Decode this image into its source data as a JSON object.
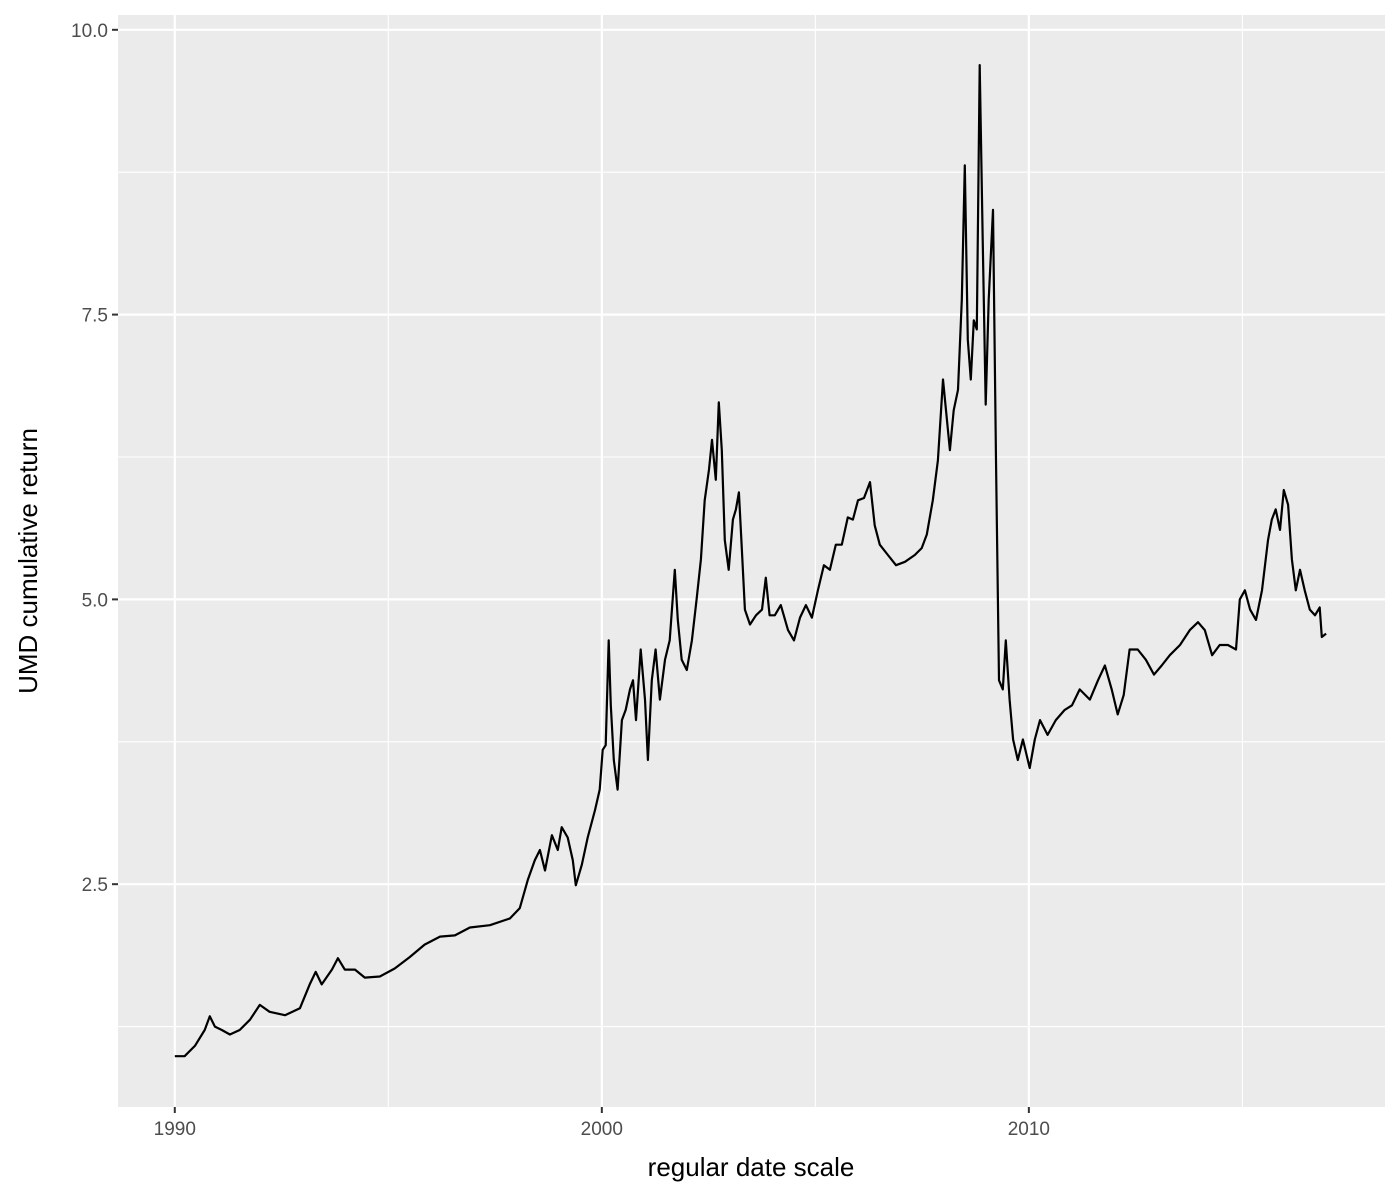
{
  "chart_data": {
    "type": "line",
    "title": "",
    "xlabel": "regular date scale",
    "ylabel": "UMD cumulative return",
    "xlim": [
      1988.67,
      2018.34
    ],
    "ylim": [
      0.544,
      10.13
    ],
    "x_ticks": [
      1990,
      2000,
      2010
    ],
    "x_tick_labels": [
      "1990",
      "2000",
      "2010"
    ],
    "x_minor_ticks": [
      1995,
      2005,
      2015
    ],
    "y_ticks": [
      2.5,
      5.0,
      7.5,
      10.0
    ],
    "y_tick_labels": [
      "2.5",
      "5.0",
      "7.5",
      "10.0"
    ],
    "y_minor_ticks": [
      1.25,
      3.75,
      6.25,
      8.75
    ],
    "grid": true,
    "panel_background": "#EBEBEB",
    "grid_color": "#FFFFFF",
    "line_color": "#000000",
    "series": [
      {
        "x": [
          1990.0,
          1990.23,
          1990.47,
          1990.7,
          1990.82,
          1990.94,
          1991.1,
          1991.29,
          1991.52,
          1991.76,
          1991.99,
          1992.22,
          1992.58,
          1992.93,
          1993.16,
          1993.3,
          1993.44,
          1993.68,
          1993.82,
          1993.98,
          1994.22,
          1994.45,
          1994.8,
          1995.15,
          1995.5,
          1995.85,
          1996.21,
          1996.56,
          1996.91,
          1997.38,
          1997.85,
          1998.08,
          1998.27,
          1998.43,
          1998.55,
          1998.67,
          1998.83,
          1998.97,
          1999.06,
          1999.2,
          1999.32,
          1999.39,
          1999.53,
          1999.67,
          1999.84,
          1999.95,
          2000.02,
          2000.09,
          2000.16,
          2000.21,
          2000.28,
          2000.37,
          2000.47,
          2000.56,
          2000.66,
          2000.73,
          2000.8,
          2000.91,
          2001.01,
          2001.08,
          2001.17,
          2001.26,
          2001.36,
          2001.48,
          2001.59,
          2001.71,
          2001.78,
          2001.87,
          2001.99,
          2002.11,
          2002.22,
          2002.32,
          2002.41,
          2002.51,
          2002.58,
          2002.67,
          2002.74,
          2002.81,
          2002.88,
          2002.97,
          2003.07,
          2003.14,
          2003.21,
          2003.28,
          2003.35,
          2003.47,
          2003.61,
          2003.75,
          2003.84,
          2003.93,
          2004.05,
          2004.19,
          2004.36,
          2004.5,
          2004.64,
          2004.78,
          2004.92,
          2005.06,
          2005.2,
          2005.34,
          2005.48,
          2005.62,
          2005.76,
          2005.88,
          2006.0,
          2006.14,
          2006.28,
          2006.39,
          2006.51,
          2006.7,
          2006.89,
          2007.1,
          2007.33,
          2007.49,
          2007.61,
          2007.75,
          2007.87,
          2007.99,
          2008.06,
          2008.15,
          2008.24,
          2008.34,
          2008.43,
          2008.5,
          2008.57,
          2008.64,
          2008.71,
          2008.78,
          2008.85,
          2008.92,
          2008.99,
          2009.06,
          2009.16,
          2009.23,
          2009.3,
          2009.39,
          2009.46,
          2009.55,
          2009.63,
          2009.74,
          2009.86,
          2010.02,
          2010.14,
          2010.26,
          2010.44,
          2010.63,
          2010.84,
          2011.01,
          2011.19,
          2011.43,
          2011.62,
          2011.78,
          2011.94,
          2012.08,
          2012.22,
          2012.36,
          2012.55,
          2012.74,
          2012.93,
          2013.11,
          2013.3,
          2013.54,
          2013.77,
          2013.96,
          2014.12,
          2014.29,
          2014.47,
          2014.66,
          2014.85,
          2014.94,
          2015.06,
          2015.18,
          2015.32,
          2015.46,
          2015.6,
          2015.69,
          2015.78,
          2015.88,
          2015.97,
          2016.07,
          2016.16,
          2016.25,
          2016.35,
          2016.46,
          2016.58,
          2016.7,
          2016.81,
          2016.86,
          2016.96
        ],
        "y": [
          0.99,
          0.99,
          1.08,
          1.22,
          1.34,
          1.25,
          1.22,
          1.18,
          1.22,
          1.31,
          1.44,
          1.38,
          1.35,
          1.41,
          1.62,
          1.73,
          1.62,
          1.75,
          1.85,
          1.75,
          1.75,
          1.68,
          1.69,
          1.76,
          1.86,
          1.97,
          2.04,
          2.05,
          2.12,
          2.14,
          2.2,
          2.29,
          2.54,
          2.71,
          2.8,
          2.62,
          2.93,
          2.8,
          3.0,
          2.91,
          2.71,
          2.49,
          2.67,
          2.91,
          3.15,
          3.33,
          3.68,
          3.72,
          4.64,
          4.07,
          3.59,
          3.33,
          3.94,
          4.03,
          4.21,
          4.29,
          3.94,
          4.56,
          4.12,
          3.59,
          4.29,
          4.56,
          4.12,
          4.47,
          4.64,
          5.26,
          4.82,
          4.47,
          4.38,
          4.64,
          5.0,
          5.35,
          5.87,
          6.14,
          6.4,
          6.05,
          6.73,
          6.31,
          5.52,
          5.26,
          5.7,
          5.79,
          5.94,
          5.43,
          4.91,
          4.78,
          4.86,
          4.91,
          5.19,
          4.86,
          4.86,
          4.95,
          4.73,
          4.64,
          4.84,
          4.95,
          4.84,
          5.08,
          5.3,
          5.26,
          5.48,
          5.48,
          5.72,
          5.7,
          5.87,
          5.89,
          6.03,
          5.65,
          5.48,
          5.39,
          5.3,
          5.33,
          5.39,
          5.45,
          5.57,
          5.87,
          6.22,
          6.93,
          6.66,
          6.31,
          6.66,
          6.84,
          7.63,
          8.81,
          7.28,
          6.93,
          7.45,
          7.37,
          9.69,
          8.16,
          6.71,
          7.63,
          8.42,
          6.22,
          4.29,
          4.21,
          4.64,
          4.12,
          3.77,
          3.59,
          3.77,
          3.52,
          3.77,
          3.94,
          3.81,
          3.94,
          4.03,
          4.07,
          4.21,
          4.12,
          4.29,
          4.42,
          4.21,
          3.99,
          4.16,
          4.56,
          4.56,
          4.47,
          4.34,
          4.42,
          4.51,
          4.6,
          4.73,
          4.8,
          4.73,
          4.51,
          4.6,
          4.6,
          4.56,
          5.0,
          5.08,
          4.91,
          4.82,
          5.08,
          5.52,
          5.7,
          5.79,
          5.61,
          5.96,
          5.83,
          5.35,
          5.08,
          5.26,
          5.08,
          4.91,
          4.86,
          4.93,
          4.67,
          4.7
        ]
      }
    ]
  }
}
